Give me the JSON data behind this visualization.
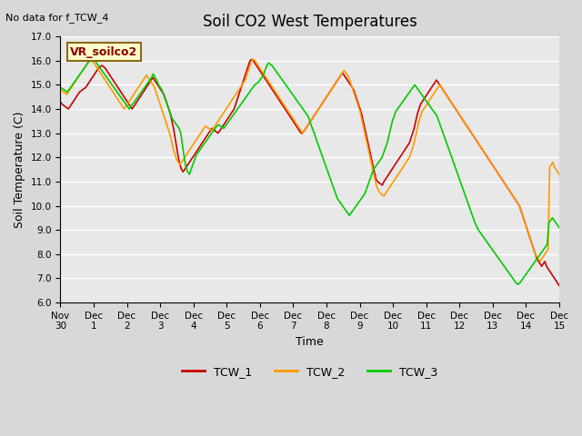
{
  "title": "Soil CO2 West Temperatures",
  "subtitle": "No data for f_TCW_4",
  "xlabel": "Time",
  "ylabel": "Soil Temperature (C)",
  "ylim": [
    6.0,
    17.0
  ],
  "yticks": [
    6.0,
    7.0,
    8.0,
    9.0,
    10.0,
    11.0,
    12.0,
    13.0,
    14.0,
    15.0,
    16.0,
    17.0
  ],
  "annotation": "VR_soilco2",
  "legend": [
    "TCW_1",
    "TCW_2",
    "TCW_3"
  ],
  "colors": [
    "#cc0000",
    "#ff9900",
    "#00cc00"
  ],
  "linewidth": 1.2,
  "xtick_labels": [
    "Nov 30",
    "Dec 1",
    "Dec 2",
    "Dec 3",
    "Dec 4",
    "Dec 5",
    "Dec 6",
    "Dec 7",
    "Dec 8",
    "Dec 9",
    "Dec 10",
    "Dec 11",
    "Dec 12",
    "Dec 13",
    "Dec 14",
    "Dec 15"
  ],
  "tcw1": [
    14.3,
    14.2,
    14.15,
    14.1,
    14.05,
    14.0,
    14.1,
    14.2,
    14.3,
    14.4,
    14.5,
    14.6,
    14.7,
    14.75,
    14.8,
    14.85,
    14.9,
    15.0,
    15.1,
    15.2,
    15.3,
    15.4,
    15.5,
    15.6,
    15.7,
    15.75,
    15.8,
    15.75,
    15.7,
    15.6,
    15.5,
    15.4,
    15.3,
    15.2,
    15.1,
    15.0,
    14.9,
    14.8,
    14.7,
    14.6,
    14.5,
    14.4,
    14.3,
    14.2,
    14.1,
    14.0,
    14.1,
    14.2,
    14.3,
    14.4,
    14.5,
    14.6,
    14.7,
    14.8,
    14.9,
    15.0,
    15.1,
    15.2,
    15.3,
    15.2,
    15.1,
    15.0,
    14.9,
    14.8,
    14.7,
    14.6,
    14.4,
    14.2,
    14.0,
    13.8,
    13.5,
    13.2,
    12.8,
    12.4,
    12.0,
    11.7,
    11.5,
    11.4,
    11.5,
    11.6,
    11.7,
    11.8,
    11.9,
    12.0,
    12.1,
    12.2,
    12.3,
    12.4,
    12.5,
    12.6,
    12.7,
    12.8,
    12.9,
    13.0,
    13.1,
    13.2,
    13.15,
    13.1,
    13.05,
    13.0,
    13.1,
    13.2,
    13.3,
    13.4,
    13.5,
    13.6,
    13.7,
    13.8,
    13.9,
    14.0,
    14.2,
    14.4,
    14.6,
    14.8,
    15.0,
    15.2,
    15.4,
    15.6,
    15.8,
    16.0,
    16.05,
    16.0,
    15.9,
    15.8,
    15.7,
    15.6,
    15.5,
    15.4,
    15.3,
    15.2,
    15.1,
    15.0,
    14.9,
    14.8,
    14.7,
    14.6,
    14.5,
    14.4,
    14.3,
    14.2,
    14.1,
    14.0,
    13.9,
    13.8,
    13.7,
    13.6,
    13.5,
    13.4,
    13.3,
    13.2,
    13.1,
    13.0,
    13.0,
    13.1,
    13.2,
    13.3,
    13.4,
    13.5,
    13.6,
    13.7,
    13.8,
    13.9,
    14.0,
    14.1,
    14.2,
    14.3,
    14.4,
    14.5,
    14.6,
    14.7,
    14.8,
    14.9,
    15.0,
    15.1,
    15.2,
    15.3,
    15.4,
    15.5,
    15.4,
    15.3,
    15.2,
    15.1,
    15.0,
    14.9,
    14.8,
    14.6,
    14.4,
    14.2,
    14.0,
    13.8,
    13.5,
    13.2,
    12.9,
    12.6,
    12.3,
    12.0,
    11.7,
    11.4,
    11.1,
    11.0,
    10.95,
    10.9,
    10.85,
    11.0,
    11.1,
    11.2,
    11.3,
    11.4,
    11.5,
    11.6,
    11.7,
    11.8,
    11.9,
    12.0,
    12.1,
    12.2,
    12.3,
    12.4,
    12.5,
    12.6,
    12.8,
    13.0,
    13.2,
    13.5,
    13.8,
    14.0,
    14.2,
    14.3,
    14.4,
    14.5,
    14.6,
    14.7,
    14.8,
    14.9,
    15.0,
    15.1,
    15.2,
    15.1,
    15.0,
    14.9,
    14.8,
    14.7,
    14.6,
    14.5,
    14.4,
    14.3,
    14.2,
    14.1,
    14.0,
    13.9,
    13.8,
    13.7,
    13.6,
    13.5,
    13.4,
    13.3,
    13.2,
    13.1,
    13.0,
    12.9,
    12.8,
    12.7,
    12.6,
    12.5,
    12.4,
    12.3,
    12.2,
    12.1,
    12.0,
    11.9,
    11.8,
    11.7,
    11.6,
    11.5,
    11.4,
    11.3,
    11.2,
    11.1,
    11.0,
    10.9,
    10.8,
    10.7,
    10.6,
    10.5,
    10.4,
    10.3,
    10.2,
    10.1,
    10.0,
    9.8,
    9.6,
    9.4,
    9.2,
    9.0,
    8.8,
    8.6,
    8.4,
    8.2,
    8.0,
    7.8,
    7.7,
    7.6,
    7.5,
    7.6,
    7.7,
    7.5,
    7.4,
    7.3,
    7.2,
    7.1,
    7.0,
    6.9,
    6.8,
    6.7
  ],
  "tcw2": [
    14.8,
    14.75,
    14.7,
    14.65,
    14.6,
    14.7,
    14.8,
    14.9,
    15.0,
    15.1,
    15.2,
    15.3,
    15.4,
    15.5,
    15.6,
    15.7,
    15.8,
    15.9,
    16.0,
    16.05,
    16.0,
    15.9,
    15.8,
    15.7,
    15.6,
    15.5,
    15.4,
    15.3,
    15.2,
    15.1,
    15.0,
    14.9,
    14.8,
    14.7,
    14.6,
    14.5,
    14.4,
    14.3,
    14.2,
    14.1,
    14.0,
    14.1,
    14.2,
    14.3,
    14.4,
    14.5,
    14.6,
    14.7,
    14.8,
    14.9,
    15.0,
    15.1,
    15.2,
    15.3,
    15.4,
    15.3,
    15.2,
    15.1,
    15.0,
    14.9,
    14.7,
    14.5,
    14.3,
    14.1,
    13.9,
    13.7,
    13.5,
    13.3,
    13.1,
    12.9,
    12.6,
    12.3,
    12.1,
    11.9,
    11.8,
    11.7,
    11.8,
    11.9,
    12.0,
    12.1,
    12.2,
    12.3,
    12.4,
    12.5,
    12.6,
    12.7,
    12.8,
    12.9,
    13.0,
    13.1,
    13.2,
    13.3,
    13.25,
    13.2,
    13.15,
    13.1,
    13.2,
    13.3,
    13.4,
    13.5,
    13.6,
    13.7,
    13.8,
    13.9,
    14.0,
    14.1,
    14.2,
    14.3,
    14.4,
    14.5,
    14.6,
    14.7,
    14.8,
    14.9,
    15.0,
    15.1,
    15.2,
    15.4,
    15.6,
    15.8,
    16.0,
    16.05,
    16.0,
    15.9,
    15.8,
    15.7,
    15.6,
    15.5,
    15.4,
    15.3,
    15.2,
    15.1,
    15.0,
    14.9,
    14.8,
    14.7,
    14.6,
    14.5,
    14.4,
    14.3,
    14.2,
    14.1,
    14.0,
    13.9,
    13.8,
    13.7,
    13.6,
    13.5,
    13.4,
    13.3,
    13.2,
    13.1,
    13.0,
    13.1,
    13.2,
    13.3,
    13.4,
    13.5,
    13.6,
    13.7,
    13.8,
    13.9,
    14.0,
    14.1,
    14.2,
    14.3,
    14.4,
    14.5,
    14.6,
    14.7,
    14.8,
    14.9,
    15.0,
    15.1,
    15.2,
    15.3,
    15.4,
    15.5,
    15.6,
    15.5,
    15.4,
    15.3,
    15.1,
    14.9,
    14.7,
    14.5,
    14.3,
    14.1,
    13.9,
    13.6,
    13.3,
    13.0,
    12.7,
    12.4,
    12.1,
    11.8,
    11.5,
    11.2,
    10.9,
    10.7,
    10.6,
    10.5,
    10.45,
    10.4,
    10.5,
    10.6,
    10.7,
    10.8,
    10.9,
    11.0,
    11.1,
    11.2,
    11.3,
    11.4,
    11.5,
    11.6,
    11.7,
    11.8,
    11.9,
    12.0,
    12.2,
    12.4,
    12.6,
    12.9,
    13.2,
    13.5,
    13.7,
    13.9,
    14.0,
    14.1,
    14.2,
    14.3,
    14.4,
    14.5,
    14.6,
    14.7,
    14.8,
    14.9,
    15.0,
    14.9,
    14.8,
    14.7,
    14.6,
    14.5,
    14.4,
    14.3,
    14.2,
    14.1,
    14.0,
    13.9,
    13.8,
    13.7,
    13.6,
    13.5,
    13.4,
    13.3,
    13.2,
    13.1,
    13.0,
    12.9,
    12.8,
    12.7,
    12.6,
    12.5,
    12.4,
    12.3,
    12.2,
    12.1,
    12.0,
    11.9,
    11.8,
    11.7,
    11.6,
    11.5,
    11.4,
    11.3,
    11.2,
    11.1,
    11.0,
    10.9,
    10.8,
    10.7,
    10.6,
    10.5,
    10.4,
    10.3,
    10.2,
    10.1,
    10.0,
    9.8,
    9.6,
    9.4,
    9.2,
    9.0,
    8.8,
    8.6,
    8.4,
    8.2,
    8.0,
    7.9,
    7.8,
    7.7,
    7.8,
    7.9,
    8.0,
    8.1,
    8.2,
    11.6,
    11.7,
    11.8,
    11.6,
    11.5,
    11.4,
    11.3
  ],
  "tcw3": [
    14.9,
    14.85,
    14.8,
    14.75,
    14.7,
    14.8,
    14.9,
    15.0,
    15.1,
    15.2,
    15.3,
    15.4,
    15.5,
    15.6,
    15.7,
    15.8,
    15.9,
    16.0,
    16.1,
    16.05,
    16.0,
    15.9,
    15.8,
    15.7,
    15.6,
    15.5,
    15.4,
    15.3,
    15.2,
    15.1,
    15.0,
    14.9,
    14.8,
    14.7,
    14.6,
    14.5,
    14.4,
    14.3,
    14.2,
    14.1,
    14.0,
    14.1,
    14.2,
    14.3,
    14.4,
    14.5,
    14.6,
    14.7,
    14.8,
    14.9,
    15.0,
    15.1,
    15.2,
    15.3,
    15.45,
    15.3,
    15.2,
    15.0,
    14.9,
    14.8,
    14.6,
    14.4,
    14.2,
    14.0,
    13.8,
    13.6,
    13.5,
    13.4,
    13.3,
    13.2,
    13.0,
    12.5,
    12.0,
    11.6,
    11.4,
    11.3,
    11.5,
    11.7,
    11.9,
    12.1,
    12.2,
    12.3,
    12.4,
    12.5,
    12.6,
    12.7,
    12.8,
    12.9,
    13.0,
    13.1,
    13.2,
    13.3,
    13.35,
    13.3,
    13.25,
    13.2,
    13.3,
    13.4,
    13.5,
    13.6,
    13.7,
    13.8,
    13.9,
    14.0,
    14.1,
    14.2,
    14.3,
    14.4,
    14.5,
    14.6,
    14.7,
    14.8,
    14.9,
    15.0,
    15.05,
    15.1,
    15.2,
    15.3,
    15.4,
    15.6,
    15.8,
    15.9,
    15.85,
    15.8,
    15.7,
    15.6,
    15.5,
    15.4,
    15.3,
    15.2,
    15.1,
    15.0,
    14.9,
    14.8,
    14.7,
    14.6,
    14.5,
    14.4,
    14.3,
    14.2,
    14.1,
    14.0,
    13.9,
    13.8,
    13.7,
    13.5,
    13.3,
    13.1,
    12.9,
    12.7,
    12.5,
    12.3,
    12.1,
    11.9,
    11.7,
    11.5,
    11.3,
    11.1,
    10.9,
    10.7,
    10.5,
    10.3,
    10.2,
    10.1,
    10.0,
    9.9,
    9.8,
    9.7,
    9.6,
    9.7,
    9.8,
    9.9,
    10.0,
    10.1,
    10.2,
    10.3,
    10.4,
    10.5,
    10.7,
    10.9,
    11.1,
    11.3,
    11.5,
    11.6,
    11.7,
    11.8,
    11.9,
    12.0,
    12.2,
    12.4,
    12.6,
    12.9,
    13.2,
    13.5,
    13.7,
    13.9,
    14.0,
    14.1,
    14.2,
    14.3,
    14.4,
    14.5,
    14.6,
    14.7,
    14.8,
    14.9,
    15.0,
    14.9,
    14.8,
    14.7,
    14.6,
    14.5,
    14.4,
    14.3,
    14.2,
    14.1,
    14.0,
    13.9,
    13.8,
    13.7,
    13.5,
    13.3,
    13.1,
    12.9,
    12.7,
    12.5,
    12.3,
    12.1,
    11.9,
    11.7,
    11.5,
    11.3,
    11.1,
    10.9,
    10.7,
    10.5,
    10.3,
    10.1,
    9.9,
    9.7,
    9.5,
    9.3,
    9.15,
    9.0,
    8.9,
    8.8,
    8.7,
    8.6,
    8.5,
    8.4,
    8.3,
    8.2,
    8.1,
    8.0,
    7.9,
    7.8,
    7.7,
    7.6,
    7.5,
    7.4,
    7.3,
    7.2,
    7.1,
    7.0,
    6.9,
    6.8,
    6.75,
    6.8,
    6.9,
    7.0,
    7.1,
    7.2,
    7.3,
    7.4,
    7.5,
    7.6,
    7.7,
    7.8,
    7.9,
    8.0,
    8.1,
    8.2,
    8.3,
    8.4,
    9.3,
    9.4,
    9.5,
    9.4,
    9.3,
    9.2,
    9.1
  ]
}
